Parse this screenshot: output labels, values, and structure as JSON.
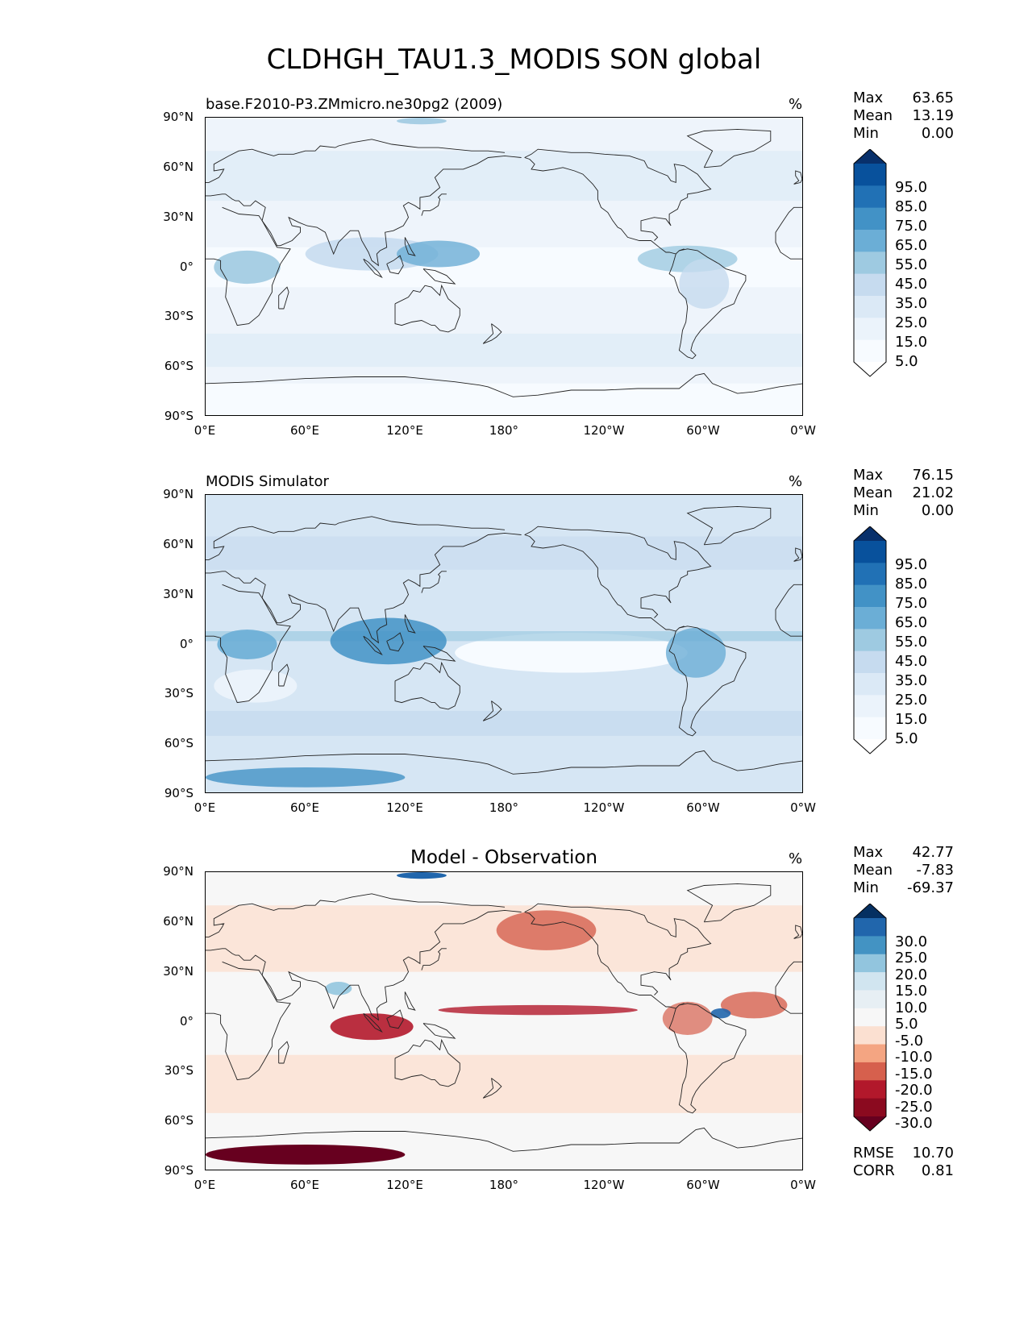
{
  "title": "CLDHGH_TAU1.3_MODIS SON global",
  "axes": {
    "y_ticks": [
      "90°N",
      "60°N",
      "30°N",
      "0°",
      "30°S",
      "60°S",
      "90°S"
    ],
    "x_ticks": [
      "0°E",
      "60°E",
      "120°E",
      "180°",
      "120°W",
      "60°W",
      "0°W"
    ]
  },
  "panels": [
    {
      "title": "base.F2010-P3.ZMmicro.ne30pg2 (2009)",
      "units": "%",
      "stats": {
        "max_label": "Max",
        "max": "63.65",
        "mean_label": "Mean",
        "mean": "13.19",
        "min_label": "Min",
        "min": "0.00"
      },
      "colorbar": {
        "labels": [
          "95.0",
          "85.0",
          "75.0",
          "65.0",
          "55.0",
          "45.0",
          "35.0",
          "25.0",
          "15.0",
          "5.0"
        ],
        "colors": [
          "#08306b",
          "#08519c",
          "#2171b5",
          "#4292c6",
          "#6baed6",
          "#9ecae1",
          "#c6dbef",
          "#dbe9f6",
          "#ebf3fb",
          "#f7fbff",
          "#ffffff"
        ]
      }
    },
    {
      "title": "MODIS Simulator",
      "units": "%",
      "stats": {
        "max_label": "Max",
        "max": "76.15",
        "mean_label": "Mean",
        "mean": "21.02",
        "min_label": "Min",
        "min": "0.00"
      },
      "colorbar": {
        "labels": [
          "95.0",
          "85.0",
          "75.0",
          "65.0",
          "55.0",
          "45.0",
          "35.0",
          "25.0",
          "15.0",
          "5.0"
        ],
        "colors": [
          "#08306b",
          "#08519c",
          "#2171b5",
          "#4292c6",
          "#6baed6",
          "#9ecae1",
          "#c6dbef",
          "#dbe9f6",
          "#ebf3fb",
          "#f7fbff",
          "#ffffff"
        ]
      }
    },
    {
      "title": "Model - Observation",
      "units": "%",
      "stats": {
        "max_label": "Max",
        "max": "42.77",
        "mean_label": "Mean",
        "mean": "-7.83",
        "min_label": "Min",
        "min": "-69.37"
      },
      "colorbar": {
        "labels": [
          "30.0",
          "25.0",
          "20.0",
          "15.0",
          "10.0",
          "5.0",
          "-5.0",
          "-10.0",
          "-15.0",
          "-20.0",
          "-25.0",
          "-30.0"
        ],
        "colors": [
          "#053061",
          "#2166ac",
          "#4393c3",
          "#92c5de",
          "#d1e5f0",
          "#e7eff4",
          "#f7f7f7",
          "#fbe0d1",
          "#f4a582",
          "#d6604d",
          "#b2182b",
          "#8b0a1f",
          "#67001f"
        ]
      },
      "metrics": {
        "rmse_label": "RMSE",
        "rmse": "10.70",
        "corr_label": "CORR",
        "corr": "0.81"
      }
    }
  ],
  "chart_data": [
    {
      "type": "heatmap",
      "title": "base.F2010-P3.ZMmicro.ne30pg2 (2009)",
      "units": "%",
      "xlim": [
        0,
        360
      ],
      "ylim": [
        -90,
        90
      ],
      "color_levels": [
        5,
        15,
        25,
        35,
        45,
        55,
        65,
        75,
        85,
        95
      ],
      "max": 63.65,
      "mean": 13.19,
      "min": 0.0,
      "colormap": "Blues"
    },
    {
      "type": "heatmap",
      "title": "MODIS Simulator",
      "units": "%",
      "xlim": [
        0,
        360
      ],
      "ylim": [
        -90,
        90
      ],
      "color_levels": [
        5,
        15,
        25,
        35,
        45,
        55,
        65,
        75,
        85,
        95
      ],
      "max": 76.15,
      "mean": 21.02,
      "min": 0.0,
      "colormap": "Blues"
    },
    {
      "type": "heatmap",
      "title": "Model - Observation",
      "units": "%",
      "xlim": [
        0,
        360
      ],
      "ylim": [
        -90,
        90
      ],
      "color_levels": [
        -30,
        -25,
        -20,
        -15,
        -10,
        -5,
        5,
        10,
        15,
        20,
        25,
        30
      ],
      "max": 42.77,
      "mean": -7.83,
      "min": -69.37,
      "rmse": 10.7,
      "corr": 0.81,
      "colormap": "RdBu"
    }
  ]
}
